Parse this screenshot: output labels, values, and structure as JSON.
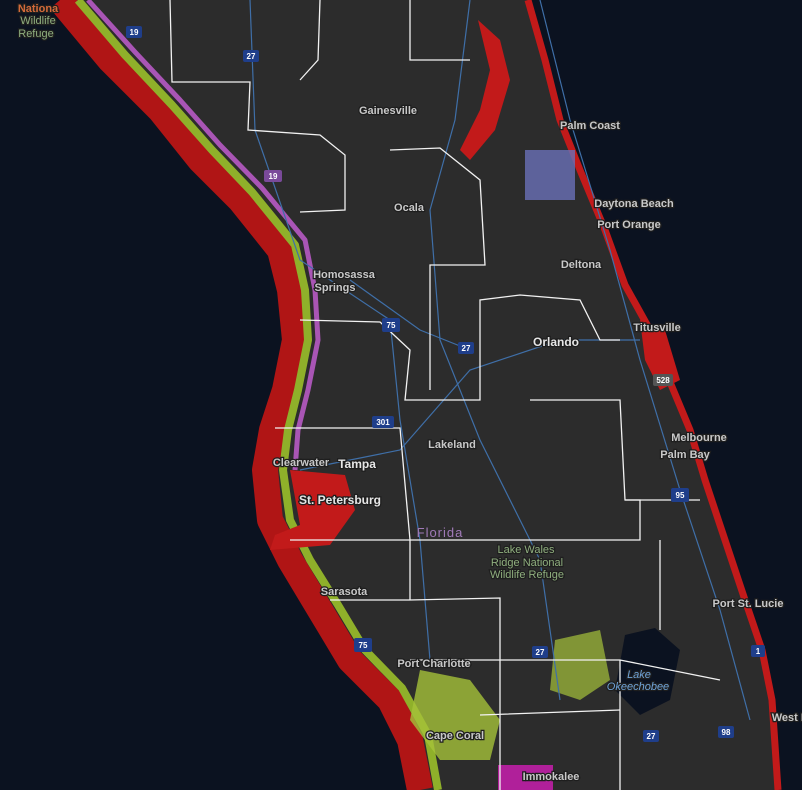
{
  "places": [
    [
      "Nationa",
      "Wildlife",
      "Refuge"
    ],
    [
      "Gainesville"
    ],
    [
      "Palm Coast"
    ],
    [
      "Daytona Beach"
    ],
    [
      "Port Orange"
    ],
    [
      "Ocala"
    ],
    [
      "Deltona"
    ],
    [
      "Homosassa",
      "Springs"
    ],
    [
      "Titusville"
    ],
    [
      "Orlando"
    ],
    [
      "Lakeland"
    ],
    [
      "Clearwater"
    ],
    [
      "Tampa"
    ],
    [
      "St. Petersburg"
    ],
    [
      "Melbourne"
    ],
    [
      "Palm Bay"
    ],
    [
      "Florida"
    ],
    [
      "Lake Wales",
      "Ridge National",
      "Wildlife Refuge"
    ],
    [
      "Sarasota"
    ],
    [
      "Port St. Lucie"
    ],
    [
      "Port Charlotte"
    ],
    [
      "Lake",
      "Okeechobee"
    ],
    [
      "Cape Coral"
    ],
    [
      "Immokalee"
    ],
    [
      "West P"
    ]
  ],
  "highways": [
    "19",
    "27",
    "19",
    "75",
    "27",
    "301",
    "95",
    "75",
    "27",
    "27",
    "98",
    "528",
    "1"
  ]
}
